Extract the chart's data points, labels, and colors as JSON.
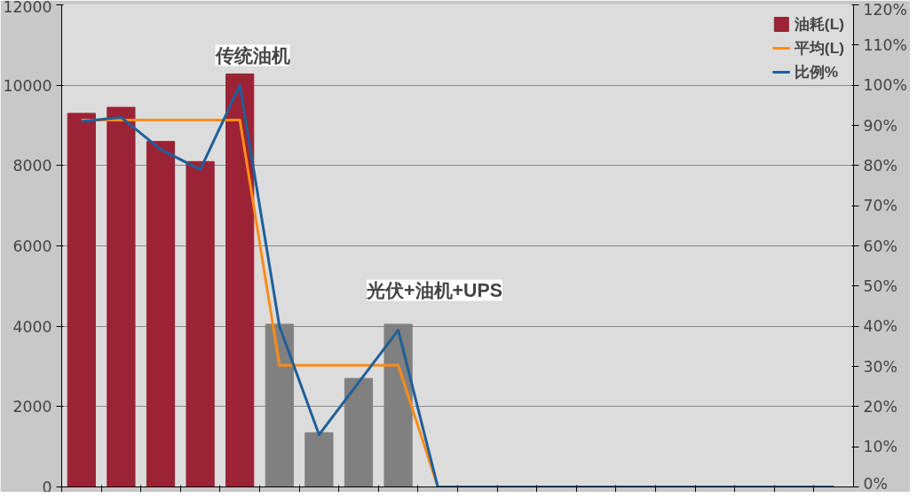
{
  "chart_data": {
    "type": "bar",
    "categories": [
      null,
      null,
      null,
      null,
      null,
      null,
      null,
      null,
      null,
      null,
      null,
      null,
      null,
      null,
      null,
      null,
      null,
      null,
      null,
      null
    ],
    "series": [
      {
        "name": "油耗(L)",
        "values": [
          9300,
          9450,
          8600,
          8100,
          10280,
          4050,
          1350,
          2700,
          4050,
          null,
          null,
          null,
          null,
          null,
          null,
          null,
          null,
          null,
          null,
          null
        ],
        "colors": [
          "#9b2335",
          "#9b2335",
          "#9b2335",
          "#9b2335",
          "#9b2335",
          "#808080",
          "#808080",
          "#808080",
          "#808080",
          "#808080",
          "#808080",
          "#808080",
          "#808080",
          "#808080",
          "#808080",
          "#808080",
          "#808080",
          "#808080",
          "#808080",
          "#808080"
        ]
      },
      {
        "name": "平均(L)",
        "type": "line",
        "color": "#ff8c1a",
        "values": [
          9130,
          9130,
          9130,
          9130,
          9130,
          3030,
          3030,
          3030,
          3030,
          0,
          null,
          null,
          null,
          null,
          null,
          null,
          null,
          null,
          null,
          null
        ]
      },
      {
        "name": "比例%",
        "type": "line",
        "axis": "y2",
        "color": "#1f5f99",
        "values": [
          91,
          92,
          84,
          79,
          100,
          40,
          13,
          26,
          39,
          0,
          0,
          0,
          0,
          0,
          0,
          0,
          0,
          0,
          0,
          0
        ]
      }
    ],
    "ylim": [
      0,
      12000
    ],
    "yticks": [
      0,
      2000,
      4000,
      6000,
      8000,
      10000,
      12000
    ],
    "y2lim": [
      0,
      120
    ],
    "y2ticks": [
      {
        "value": 0,
        "label": "0%"
      },
      {
        "value": 10,
        "label": "10%"
      },
      {
        "value": 20,
        "label": "20%"
      },
      {
        "value": 30,
        "label": "30%"
      },
      {
        "value": 40,
        "label": "40%"
      },
      {
        "value": 50,
        "label": "50%"
      },
      {
        "value": 60,
        "label": "60%"
      },
      {
        "value": 70,
        "label": "70%"
      },
      {
        "value": 80,
        "label": "80%"
      },
      {
        "value": 90,
        "label": "90%"
      },
      {
        "value": 100,
        "label": "100%"
      },
      {
        "value": 110,
        "label": "110%"
      },
      {
        "value": 120,
        "label": "120%"
      }
    ],
    "annotations": [
      "传统油机",
      "光伏+油机+UPS"
    ],
    "grid": "y",
    "legend": "top right"
  }
}
